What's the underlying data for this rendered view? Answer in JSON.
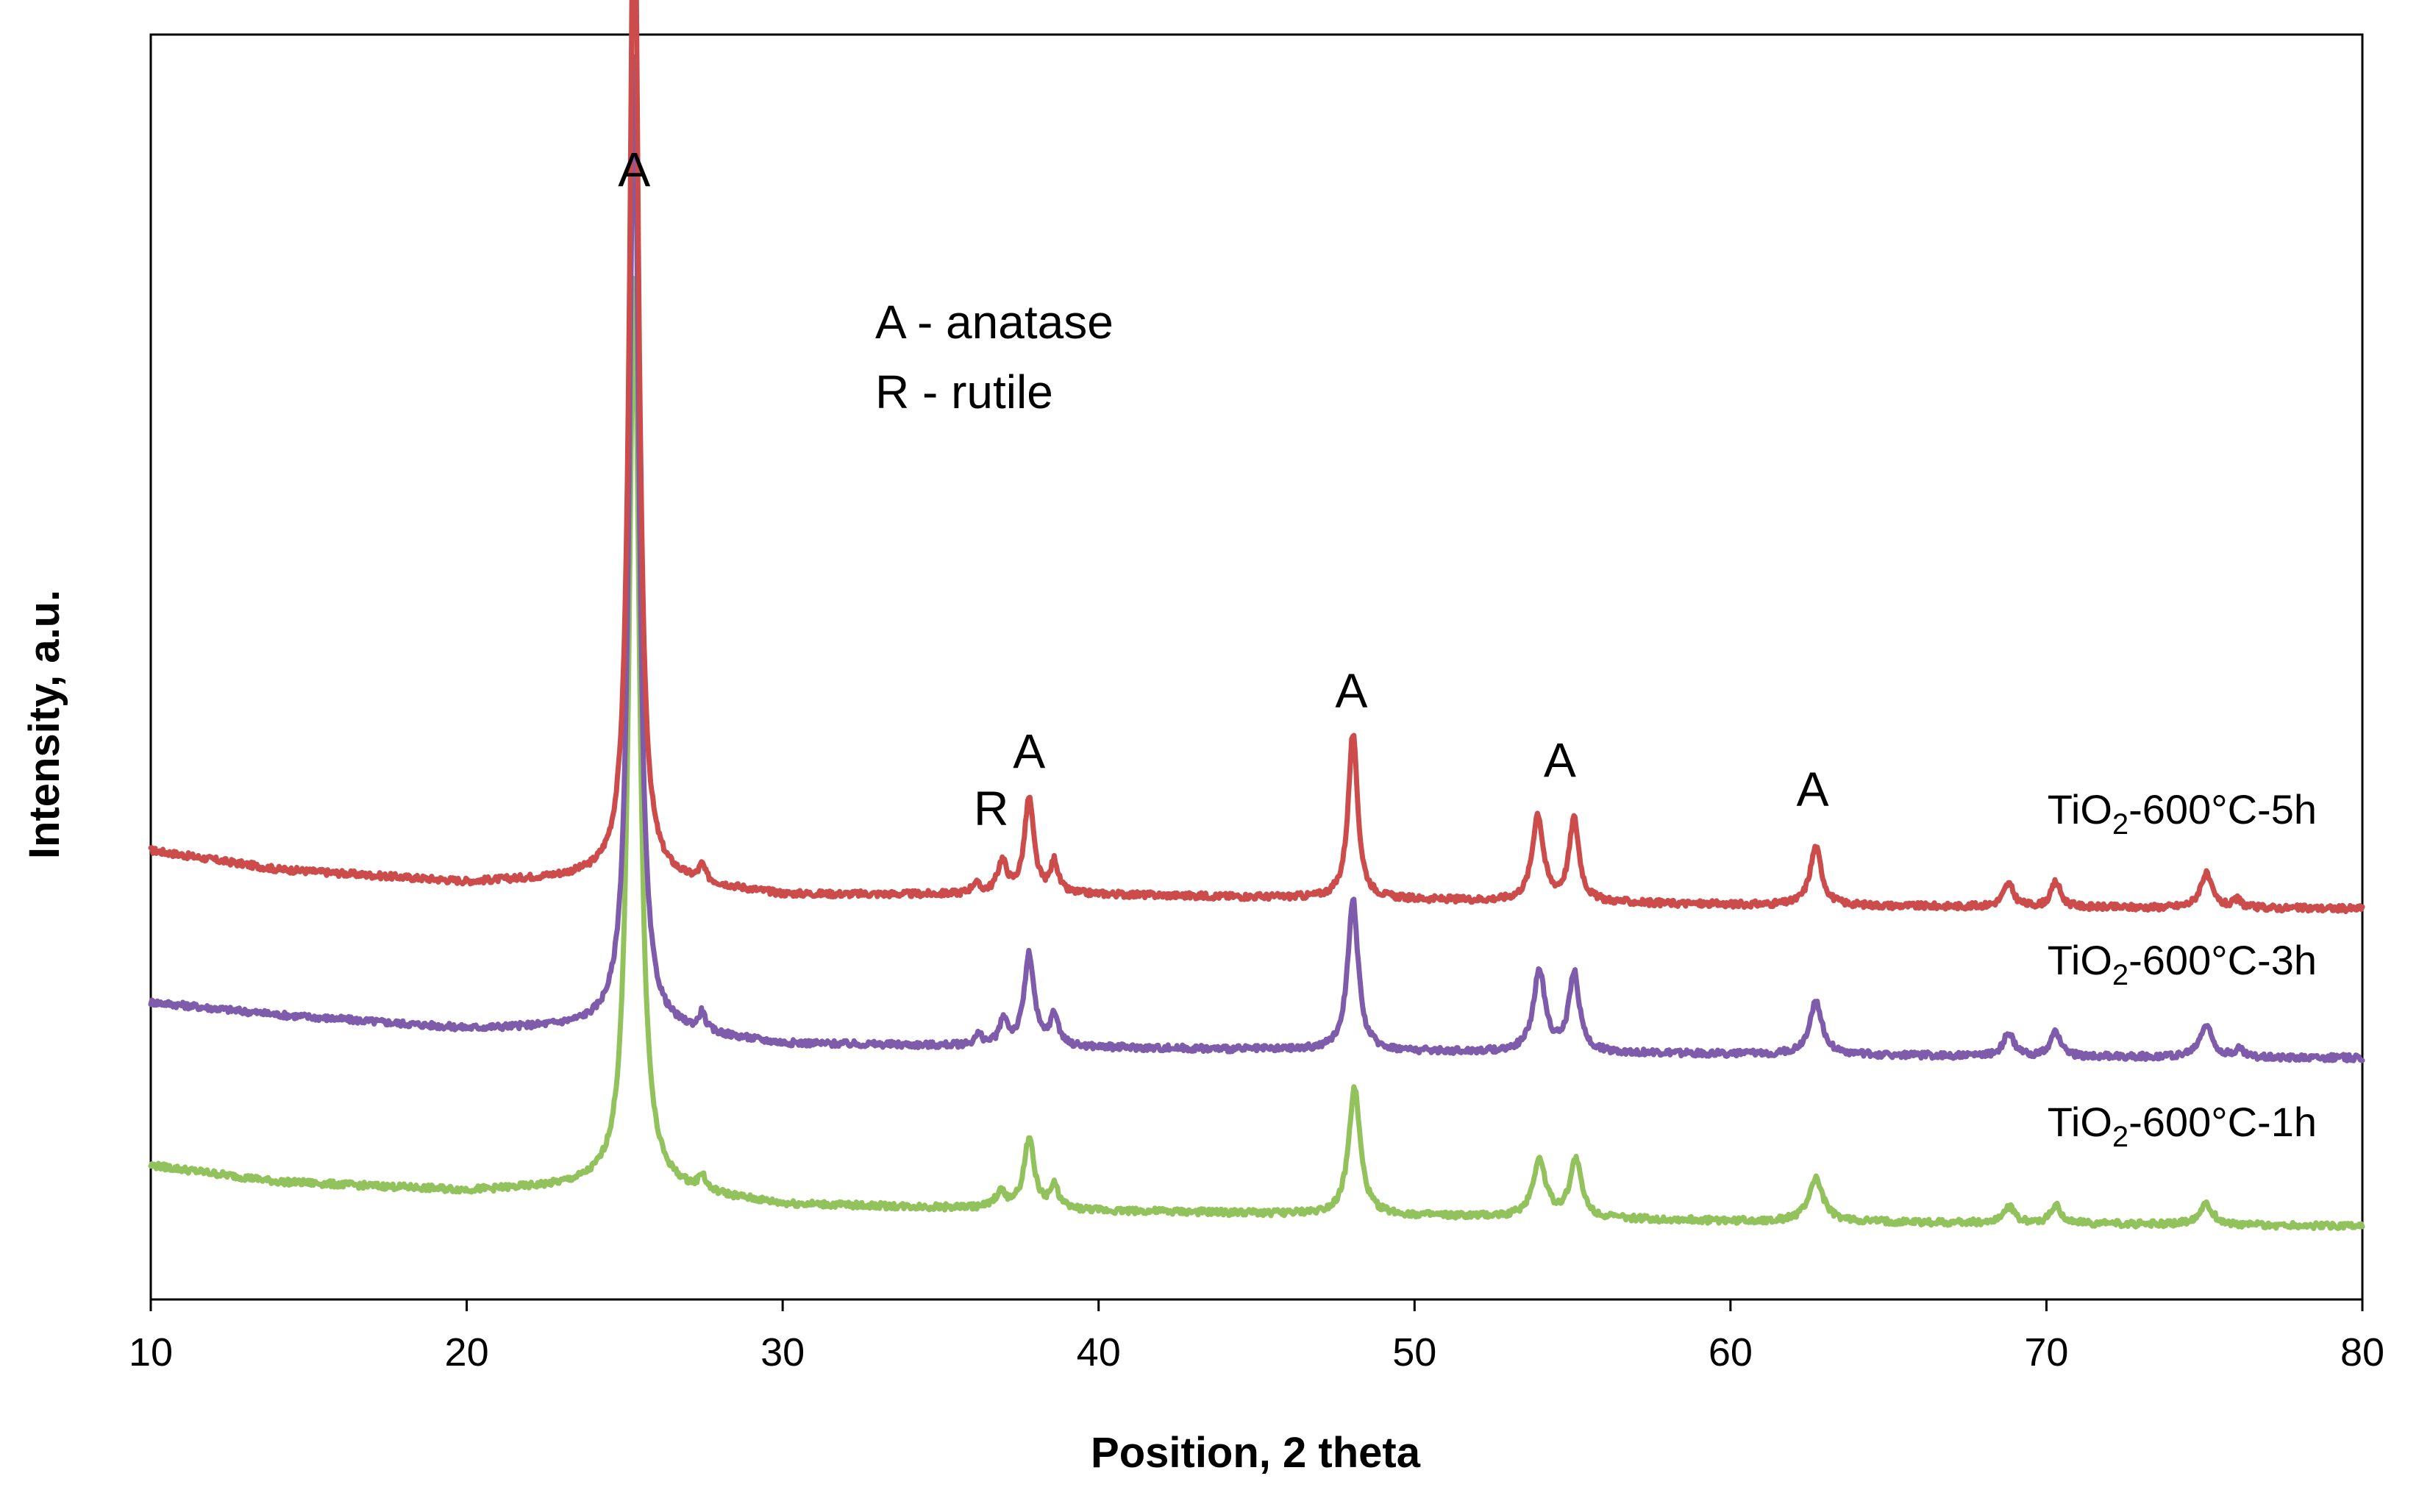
{
  "chart_data": {
    "type": "line",
    "title": "",
    "xlabel": "Position, 2 theta",
    "ylabel": "Intensity, a.u.",
    "xlim": [
      10,
      80
    ],
    "ylim": [
      0,
      1000
    ],
    "xticks": [
      "10",
      "20",
      "30",
      "40",
      "50",
      "60",
      "70",
      "80"
    ],
    "yticks_shown": false,
    "legend_note": [
      "A - anatase",
      "R - rutile"
    ],
    "series": [
      {
        "name": "TiO2-600°C-5h",
        "label_main": "TiO",
        "label_sub": "2",
        "label_rest": "-600°C-5h",
        "color": "#cc4b4b",
        "baseline": [
          [
            10,
            355
          ],
          [
            14,
            340
          ],
          [
            20,
            330
          ],
          [
            25,
            335
          ],
          [
            30,
            320
          ],
          [
            40,
            320
          ],
          [
            50,
            316
          ],
          [
            60,
            312
          ],
          [
            70,
            310
          ],
          [
            80,
            309
          ]
        ],
        "peaks": [
          [
            25.3,
            815,
            0.17
          ],
          [
            27.45,
            12,
            0.12
          ],
          [
            36.1,
            8,
            0.15
          ],
          [
            36.95,
            25,
            0.18
          ],
          [
            37.8,
            75,
            0.18
          ],
          [
            38.6,
            25,
            0.14
          ],
          [
            48.05,
            130,
            0.18
          ],
          [
            53.9,
            68,
            0.21
          ],
          [
            55.05,
            65,
            0.19
          ],
          [
            62.7,
            46,
            0.22
          ],
          [
            68.8,
            18,
            0.2
          ],
          [
            70.3,
            20,
            0.18
          ],
          [
            75.05,
            27,
            0.22
          ],
          [
            76.05,
            6,
            0.15
          ]
        ]
      },
      {
        "name": "TiO2-600°C-3h",
        "label_main": "TiO",
        "label_sub": "2",
        "label_rest": "-600°C-3h",
        "color": "#7e5bab",
        "baseline": [
          [
            10,
            235
          ],
          [
            14,
            225
          ],
          [
            20,
            214
          ],
          [
            25,
            216
          ],
          [
            30,
            202
          ],
          [
            40,
            199
          ],
          [
            50,
            196
          ],
          [
            60,
            194
          ],
          [
            70,
            192
          ],
          [
            80,
            191
          ]
        ],
        "peaks": [
          [
            25.3,
            770,
            0.18
          ],
          [
            27.45,
            14,
            0.12
          ],
          [
            36.2,
            8,
            0.15
          ],
          [
            37.0,
            20,
            0.16
          ],
          [
            37.8,
            72,
            0.19
          ],
          [
            38.6,
            24,
            0.16
          ],
          [
            48.05,
            120,
            0.2
          ],
          [
            53.95,
            63,
            0.23
          ],
          [
            55.05,
            62,
            0.2
          ],
          [
            62.7,
            42,
            0.24
          ],
          [
            68.8,
            18,
            0.2
          ],
          [
            70.3,
            20,
            0.18
          ],
          [
            75.05,
            25,
            0.24
          ],
          [
            76.1,
            6,
            0.15
          ]
        ]
      },
      {
        "name": "TiO2-600°C-1h",
        "label_main": "TiO",
        "label_sub": "2",
        "label_rest": "-600°C-1h",
        "color": "#92c25c",
        "baseline": [
          [
            10,
            106
          ],
          [
            14,
            93
          ],
          [
            20,
            86
          ],
          [
            25,
            90
          ],
          [
            30,
            75
          ],
          [
            40,
            70
          ],
          [
            50,
            66
          ],
          [
            60,
            62
          ],
          [
            70,
            60
          ],
          [
            80,
            58
          ]
        ],
        "peaks": [
          [
            25.3,
            720,
            0.2
          ],
          [
            27.45,
            12,
            0.12
          ],
          [
            36.9,
            12,
            0.2
          ],
          [
            37.8,
            55,
            0.2
          ],
          [
            38.6,
            18,
            0.16
          ],
          [
            48.1,
            100,
            0.22
          ],
          [
            53.95,
            45,
            0.25
          ],
          [
            55.1,
            46,
            0.22
          ],
          [
            62.7,
            34,
            0.27
          ],
          [
            68.8,
            13,
            0.22
          ],
          [
            70.3,
            14,
            0.2
          ],
          [
            75.05,
            17,
            0.25
          ]
        ]
      }
    ],
    "peak_annotations": [
      {
        "text": "A",
        "x": 25.3,
        "y": 880
      },
      {
        "text": "A",
        "x": 37.8,
        "y": 420
      },
      {
        "text": "R",
        "x": 36.6,
        "y": 375
      },
      {
        "text": "A",
        "x": 48.0,
        "y": 468
      },
      {
        "text": "A",
        "x": 54.6,
        "y": 413
      },
      {
        "text": "A",
        "x": 62.6,
        "y": 390
      }
    ]
  }
}
